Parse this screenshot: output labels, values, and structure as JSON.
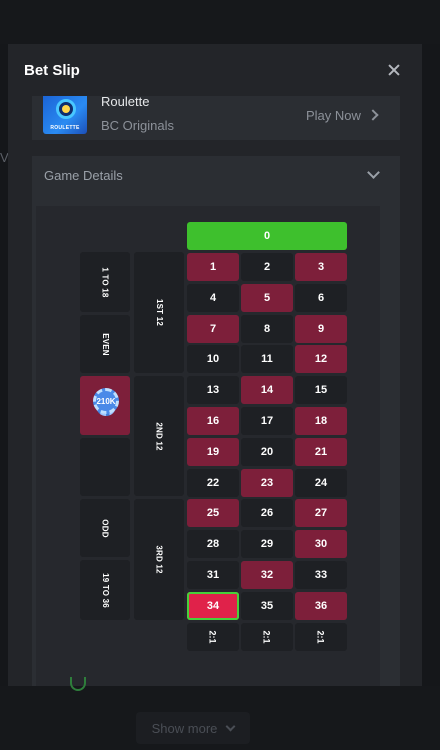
{
  "modal": {
    "title": "Bet Slip"
  },
  "game": {
    "name": "Roulette",
    "provider": "BC Originals",
    "thumb_text": "ROULETTE",
    "play_label": "Play Now"
  },
  "details": {
    "title": "Game Details"
  },
  "board": {
    "zero": "0",
    "numbers": [
      {
        "n": "1",
        "color": "red"
      },
      {
        "n": "2",
        "color": "black"
      },
      {
        "n": "3",
        "color": "red"
      },
      {
        "n": "4",
        "color": "black"
      },
      {
        "n": "5",
        "color": "red"
      },
      {
        "n": "6",
        "color": "black"
      },
      {
        "n": "7",
        "color": "red"
      },
      {
        "n": "8",
        "color": "black"
      },
      {
        "n": "9",
        "color": "red"
      },
      {
        "n": "10",
        "color": "black"
      },
      {
        "n": "11",
        "color": "black"
      },
      {
        "n": "12",
        "color": "red"
      },
      {
        "n": "13",
        "color": "black"
      },
      {
        "n": "14",
        "color": "red"
      },
      {
        "n": "15",
        "color": "black"
      },
      {
        "n": "16",
        "color": "red"
      },
      {
        "n": "17",
        "color": "black"
      },
      {
        "n": "18",
        "color": "red"
      },
      {
        "n": "19",
        "color": "red"
      },
      {
        "n": "20",
        "color": "black"
      },
      {
        "n": "21",
        "color": "red"
      },
      {
        "n": "22",
        "color": "black"
      },
      {
        "n": "23",
        "color": "red"
      },
      {
        "n": "24",
        "color": "black"
      },
      {
        "n": "25",
        "color": "red"
      },
      {
        "n": "26",
        "color": "black"
      },
      {
        "n": "27",
        "color": "red"
      },
      {
        "n": "28",
        "color": "black"
      },
      {
        "n": "29",
        "color": "black"
      },
      {
        "n": "30",
        "color": "red"
      },
      {
        "n": "31",
        "color": "black"
      },
      {
        "n": "32",
        "color": "red"
      },
      {
        "n": "33",
        "color": "black"
      },
      {
        "n": "34",
        "color": "selected"
      },
      {
        "n": "35",
        "color": "black"
      },
      {
        "n": "36",
        "color": "red"
      }
    ],
    "column_bets": [
      "2:1",
      "2:1",
      "2:1"
    ],
    "dozens": [
      "1ST 12",
      "2ND 12",
      "3RD 12"
    ],
    "outside": {
      "low": "1 TO 18",
      "even": "EVEN",
      "odd": "ODD",
      "high": "19 TO 36"
    },
    "chip_label": "210K"
  },
  "page": {
    "show_more_label": "Show more",
    "side_char": "V"
  },
  "colors": {
    "red": "#7d1f3a",
    "black": "#1e2024",
    "green": "#3ec02d",
    "selected": "#e0224a"
  }
}
